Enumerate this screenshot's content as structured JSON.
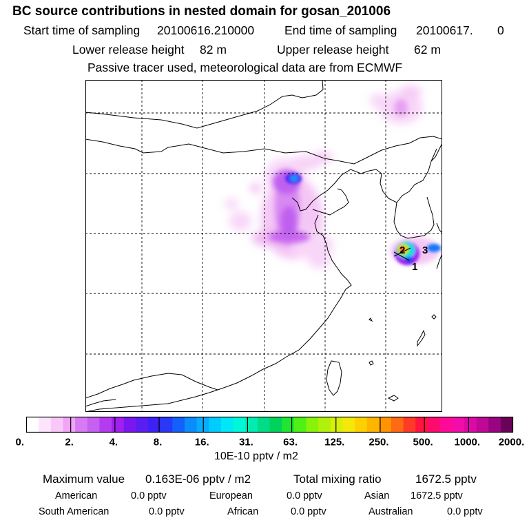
{
  "header": {
    "title": "BC  source contributions in nested domain for gosan_201006",
    "start_label": "Start time of sampling",
    "start_value": "20100616.210000",
    "end_label": "End time of sampling",
    "end_value": "20100617.",
    "end_suffix": "0",
    "lower_label": "Lower release height",
    "lower_value": "82 m",
    "upper_label": "Upper release height",
    "upper_value": "62 m",
    "tracer_note": "Passive tracer used, meteorological data are from ECMWF"
  },
  "map": {
    "markers": [
      "1",
      "2",
      "3"
    ],
    "colors": {
      "coast": "#000000",
      "grid": "#000000",
      "frame": "#000000"
    }
  },
  "colorbar": {
    "tick_labels": [
      "0.",
      "2.",
      "4.",
      "8.",
      "16.",
      "31.",
      "63.",
      "125.",
      "250.",
      "500.",
      "1000.",
      "2000."
    ],
    "colors": [
      "#ffffff",
      "#fde4fd",
      "#f8c8f8",
      "#f0a6f5",
      "#d77bf2",
      "#c560f0",
      "#b43cee",
      "#a020f0",
      "#7a16f0",
      "#5a1ef2",
      "#3c22f4",
      "#2a38f8",
      "#1460fa",
      "#0a8cfb",
      "#08acfd",
      "#00cdfe",
      "#00e8f6",
      "#00f8d8",
      "#00ecb0",
      "#00dc88",
      "#00d25c",
      "#1ee632",
      "#4ef016",
      "#88f20a",
      "#b0f00a",
      "#d6f00a",
      "#f4e80a",
      "#ffd000",
      "#ffb400",
      "#ff9400",
      "#ff6a14",
      "#ff3a28",
      "#ff1440",
      "#ff0a6e",
      "#ff0a98",
      "#f20ca8",
      "#dc0aa4",
      "#c00896",
      "#9a0480",
      "#6a0258"
    ],
    "unit": "10E-10 pptv / m2"
  },
  "footer": {
    "max_label": "Maximum value",
    "max_value": "0.163E-06 pptv / m2",
    "total_label": "Total mixing ratio",
    "total_value": "1672.5 pptv",
    "regions": [
      {
        "name": "American",
        "value": "0.0 pptv"
      },
      {
        "name": "European",
        "value": "0.0 pptv"
      },
      {
        "name": "Asian",
        "value": "1672.5 pptv"
      },
      {
        "name": "South American",
        "value": "0.0 pptv"
      },
      {
        "name": "African",
        "value": "0.0 pptv"
      },
      {
        "name": "Australian",
        "value": "0.0 pptv"
      }
    ]
  }
}
